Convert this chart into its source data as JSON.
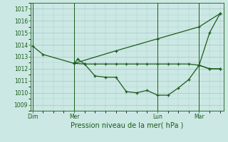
{
  "background_color": "#cce8e4",
  "grid_color": "#aaccca",
  "line_color": "#1a5c1a",
  "xlabel": "Pression niveau de la mer( hPa )",
  "ylim": [
    1008.5,
    1017.5
  ],
  "yticks": [
    1009,
    1010,
    1011,
    1012,
    1013,
    1014,
    1015,
    1016,
    1017
  ],
  "x_tick_labels": [
    "Dim",
    "Mer",
    "Lun",
    "Mar"
  ],
  "x_tick_positions": [
    0,
    12,
    36,
    48
  ],
  "x_vlines": [
    0,
    12,
    36,
    48
  ],
  "xlim": [
    -0.5,
    55
  ],
  "series": [
    {
      "x": [
        0,
        3,
        12,
        13,
        15,
        18,
        21,
        24,
        27,
        30,
        33,
        36,
        39,
        42,
        45,
        48,
        51,
        54
      ],
      "y": [
        1013.9,
        1013.2,
        1012.45,
        1012.8,
        1012.4,
        1011.4,
        1011.3,
        1011.3,
        1010.1,
        1010.0,
        1010.2,
        1009.8,
        1009.8,
        1010.4,
        1011.1,
        1012.3,
        1012.0,
        1012.0
      ]
    },
    {
      "x": [
        12,
        15,
        18,
        21,
        24,
        27,
        30,
        33,
        36,
        39,
        42,
        45,
        48,
        51,
        54
      ],
      "y": [
        1012.45,
        1012.4,
        1012.4,
        1012.4,
        1012.4,
        1012.4,
        1012.4,
        1012.4,
        1012.4,
        1012.4,
        1012.4,
        1012.4,
        1012.3,
        1012.0,
        1012.0
      ]
    },
    {
      "x": [
        12,
        24,
        36,
        48,
        54
      ],
      "y": [
        1012.45,
        1013.5,
        1014.5,
        1015.5,
        1016.6
      ]
    },
    {
      "x": [
        48,
        51,
        54
      ],
      "y": [
        1012.3,
        1015.0,
        1016.6
      ]
    }
  ]
}
